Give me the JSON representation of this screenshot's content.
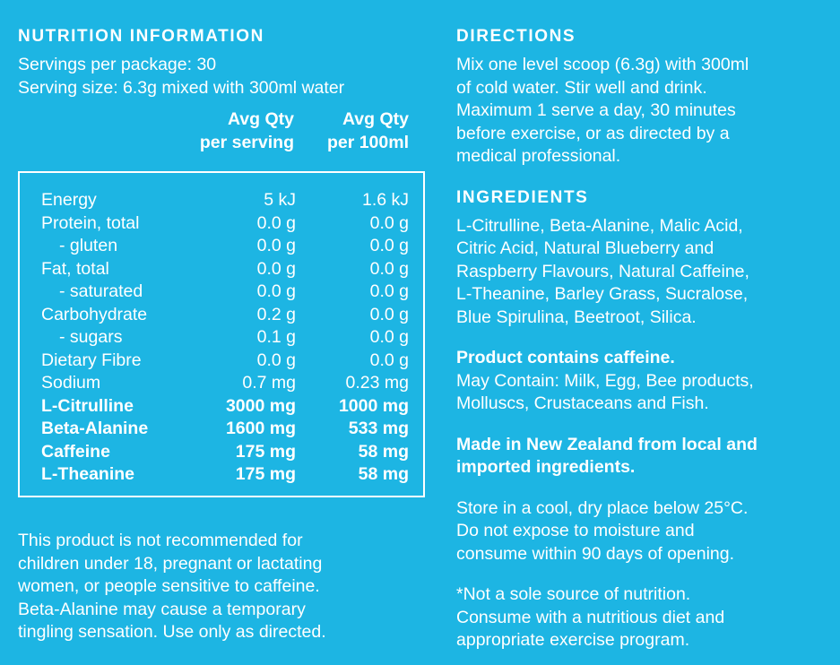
{
  "nutrition": {
    "heading": "NUTRITION INFORMATION",
    "servings_per_package": "Servings per package: 30",
    "serving_size": "Serving size: 6.3g mixed with 300ml water",
    "col1_line1": "Avg Qty",
    "col1_line2": "per serving",
    "col2_line1": "Avg Qty",
    "col2_line2": "per 100ml",
    "rows": [
      {
        "name": "Energy",
        "per_serving": "5 kJ",
        "per_100ml": "1.6 kJ",
        "indent": false,
        "bold": false
      },
      {
        "name": "Protein, total",
        "per_serving": "0.0 g",
        "per_100ml": "0.0 g",
        "indent": false,
        "bold": false
      },
      {
        "name": "- gluten",
        "per_serving": "0.0 g",
        "per_100ml": "0.0 g",
        "indent": true,
        "bold": false
      },
      {
        "name": "Fat, total",
        "per_serving": "0.0 g",
        "per_100ml": "0.0 g",
        "indent": false,
        "bold": false
      },
      {
        "name": "- saturated",
        "per_serving": "0.0 g",
        "per_100ml": "0.0 g",
        "indent": true,
        "bold": false
      },
      {
        "name": "Carbohydrate",
        "per_serving": "0.2 g",
        "per_100ml": "0.0 g",
        "indent": false,
        "bold": false
      },
      {
        "name": "- sugars",
        "per_serving": "0.1 g",
        "per_100ml": "0.0 g",
        "indent": true,
        "bold": false
      },
      {
        "name": "Dietary Fibre",
        "per_serving": "0.0 g",
        "per_100ml": "0.0 g",
        "indent": false,
        "bold": false
      },
      {
        "name": "Sodium",
        "per_serving": "0.7 mg",
        "per_100ml": "0.23 mg",
        "indent": false,
        "bold": false
      },
      {
        "name": "L-Citrulline",
        "per_serving": "3000 mg",
        "per_100ml": "1000 mg",
        "indent": false,
        "bold": true
      },
      {
        "name": "Beta-Alanine",
        "per_serving": "1600 mg",
        "per_100ml": "533 mg",
        "indent": false,
        "bold": true
      },
      {
        "name": "Caffeine",
        "per_serving": "175 mg",
        "per_100ml": "58 mg",
        "indent": false,
        "bold": true
      },
      {
        "name": "L-Theanine",
        "per_serving": "175 mg",
        "per_100ml": "58 mg",
        "indent": false,
        "bold": true
      }
    ],
    "warning": [
      "This product is not recommended for",
      "children under 18, pregnant or lactating",
      "women, or people sensitive to caffeine.",
      "Beta-Alanine may cause a temporary",
      "tingling sensation. Use only as directed."
    ]
  },
  "directions": {
    "heading": "DIRECTIONS",
    "lines": [
      "Mix one level scoop (6.3g) with 300ml",
      "of cold water. Stir well and drink.",
      "Maximum 1 serve a day, 30 minutes",
      "before exercise, or as directed by a",
      "medical professional."
    ]
  },
  "ingredients": {
    "heading": "INGREDIENTS",
    "lines": [
      "L-Citrulline, Beta-Alanine, Malic Acid,",
      "Citric Acid, Natural Blueberry and",
      "Raspberry Flavours, Natural Caffeine,",
      "L-Theanine, Barley Grass, Sucralose,",
      "Blue Spirulina, Beetroot, Silica."
    ]
  },
  "caffeine_notice": {
    "title": "Product contains caffeine.",
    "lines": [
      "May Contain: Milk, Egg, Bee products,",
      "Molluscs, Crustaceans and Fish."
    ]
  },
  "origin": {
    "lines": [
      "Made in New Zealand from local and",
      "imported ingredients."
    ]
  },
  "storage": {
    "lines": [
      "Store in a cool, dry place below 25°C.",
      "Do not expose to moisture and",
      "consume within 90 days of opening."
    ]
  },
  "disclaimer": {
    "lines": [
      "*Not a sole source of nutrition.",
      "Consume with a nutritious diet and",
      "appropriate exercise program."
    ]
  },
  "colors": {
    "background": "#1db5e3",
    "text": "#ffffff"
  }
}
